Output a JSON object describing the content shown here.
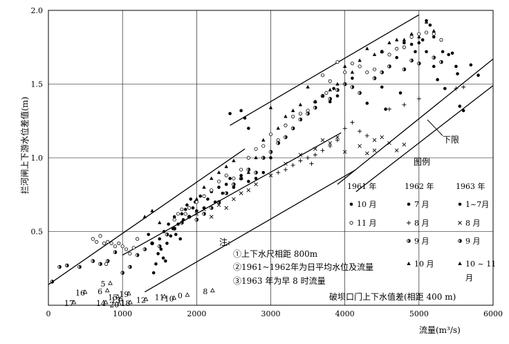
{
  "chart_data": {
    "type": "scatter",
    "title": "",
    "xlabel": "流量(m³/s)",
    "ylabel": "拦河闸上下游水位差值(m)",
    "xlim": [
      0,
      6000
    ],
    "ylim": [
      0,
      2.0
    ],
    "x_ticks": [
      "0",
      "1000",
      "2000",
      "3000",
      "4000",
      "5000",
      "6000"
    ],
    "y_ticks": [
      "0.5",
      "1.0",
      "1.5",
      "2.0"
    ],
    "grid": true,
    "legend": {
      "title": "图例",
      "years": [
        "1961 年",
        "1962 年",
        "1963 年"
      ],
      "rows": [
        {
          "key": "oct",
          "cells": [
            "10 月",
            "7 月",
            "1~7月"
          ],
          "markers": [
            "dot",
            "dot",
            "dot"
          ]
        },
        {
          "key": "nov",
          "cells": [
            "11 月",
            "8 月",
            "8 月"
          ],
          "markers": [
            "circle",
            "plus",
            "cross"
          ]
        },
        {
          "key": "sep",
          "cells": [
            "",
            "9 月",
            "9 月"
          ],
          "markers": [
            "",
            "half",
            "half"
          ]
        },
        {
          "key": "oct2",
          "cells": [
            "",
            "10 月",
            "10 ~ 11 月"
          ],
          "markers": [
            "",
            "triangle",
            "triangle"
          ]
        }
      ]
    },
    "notes": {
      "head": "注:",
      "items": [
        "①上下水尺相距 800m",
        "②1961~1962年为日平均水位及流量",
        "③1963 年为早 8 时流量"
      ]
    },
    "annotations": {
      "lower_limit": "下限",
      "dam_caption": "破坝口门上下水值差(相距 400 m)"
    },
    "lines": [
      {
        "name": "",
        "x": [
          0,
          2650
        ],
        "y": [
          0.14,
          1.06
        ]
      },
      {
        "name": "",
        "x": [
          1000,
          3950
        ],
        "y": [
          0.34,
          1.17
        ]
      },
      {
        "name": "",
        "x": [
          1300,
          4150
        ],
        "y": [
          0.09,
          0.92
        ]
      },
      {
        "name": "",
        "x": [
          2450,
          5000
        ],
        "y": [
          1.22,
          1.97
        ]
      },
      {
        "name": "",
        "x": [
          3900,
          6000
        ],
        "y": [
          0.82,
          1.67
        ]
      },
      {
        "name": "下限",
        "x": [
          4150,
          6000
        ],
        "y": [
          0.77,
          1.49
        ]
      }
    ],
    "series": [
      {
        "name": "dot",
        "points": [
          [
            1350,
            0.48
          ],
          [
            1400,
            0.42
          ],
          [
            1420,
            0.22
          ],
          [
            1450,
            0.28
          ],
          [
            1480,
            0.35
          ],
          [
            1500,
            0.45
          ],
          [
            1520,
            0.38
          ],
          [
            1550,
            0.32
          ],
          [
            1560,
            0.5
          ],
          [
            1580,
            0.3
          ],
          [
            1600,
            0.42
          ],
          [
            1620,
            0.55
          ],
          [
            1650,
            0.47
          ],
          [
            1680,
            0.52
          ],
          [
            1700,
            0.6
          ],
          [
            1720,
            0.48
          ],
          [
            1750,
            0.55
          ],
          [
            1780,
            0.45
          ],
          [
            1800,
            0.62
          ],
          [
            1820,
            0.58
          ],
          [
            1850,
            0.65
          ],
          [
            1870,
            0.68
          ],
          [
            1900,
            0.6
          ],
          [
            1920,
            0.72
          ],
          [
            1950,
            0.66
          ],
          [
            1980,
            0.7
          ],
          [
            2000,
            0.64
          ],
          [
            2050,
            0.74
          ],
          [
            2100,
            0.66
          ],
          [
            2150,
            0.72
          ],
          [
            2200,
            0.77
          ],
          [
            2250,
            0.7
          ],
          [
            2300,
            0.8
          ],
          [
            2350,
            0.76
          ],
          [
            2400,
            0.82
          ],
          [
            2450,
            0.86
          ],
          [
            2500,
            0.8
          ],
          [
            2600,
            0.88
          ],
          [
            2700,
            0.84
          ],
          [
            2800,
            0.86
          ],
          [
            2900,
            0.9
          ],
          [
            2450,
            1.3
          ],
          [
            2600,
            1.32
          ],
          [
            2650,
            1.27
          ],
          [
            2700,
            1.2
          ],
          [
            3000,
            1.0
          ],
          [
            3800,
            1.38
          ],
          [
            3850,
            1.47
          ],
          [
            3900,
            1.42
          ],
          [
            4100,
            1.54
          ],
          [
            4300,
            1.37
          ],
          [
            4500,
            1.48
          ],
          [
            4550,
            1.33
          ],
          [
            4700,
            1.68
          ],
          [
            4750,
            1.44
          ],
          [
            4800,
            1.78
          ],
          [
            4900,
            1.77
          ],
          [
            4950,
            1.72
          ],
          [
            5000,
            1.78
          ],
          [
            5050,
            1.8
          ],
          [
            5100,
            1.93
          ],
          [
            5150,
            1.9
          ],
          [
            5200,
            1.62
          ],
          [
            5250,
            1.53
          ],
          [
            5300,
            1.8
          ],
          [
            5320,
            1.72
          ],
          [
            5350,
            1.47
          ],
          [
            5400,
            1.7
          ],
          [
            5450,
            1.71
          ],
          [
            5500,
            1.62
          ],
          [
            5520,
            1.57
          ],
          [
            5550,
            1.35
          ],
          [
            5600,
            1.32
          ],
          [
            5700,
            1.63
          ],
          [
            5800,
            1.56
          ],
          [
            5200,
            1.82
          ],
          [
            5100,
            1.72
          ]
        ]
      },
      {
        "name": "circle",
        "points": [
          [
            600,
            0.45
          ],
          [
            650,
            0.43
          ],
          [
            700,
            0.47
          ],
          [
            750,
            0.42
          ],
          [
            800,
            0.43
          ],
          [
            850,
            0.42
          ],
          [
            900,
            0.4
          ],
          [
            950,
            0.42
          ],
          [
            1000,
            0.4
          ],
          [
            1050,
            0.38
          ],
          [
            1100,
            0.35
          ],
          [
            1150,
            0.39
          ],
          [
            1200,
            0.45
          ],
          [
            1700,
            0.58
          ],
          [
            1750,
            0.62
          ],
          [
            1800,
            0.65
          ],
          [
            1850,
            0.62
          ],
          [
            1900,
            0.66
          ],
          [
            2000,
            0.7
          ],
          [
            2100,
            0.74
          ],
          [
            2200,
            0.78
          ],
          [
            2300,
            0.84
          ],
          [
            2400,
            0.88
          ],
          [
            2500,
            0.86
          ],
          [
            2600,
            0.92
          ],
          [
            2700,
            1.0
          ],
          [
            2800,
            1.06
          ],
          [
            2900,
            1.08
          ],
          [
            3000,
            1.16
          ],
          [
            3100,
            1.12
          ],
          [
            3200,
            1.22
          ],
          [
            3300,
            1.28
          ],
          [
            3400,
            1.3
          ],
          [
            3500,
            1.32
          ],
          [
            3600,
            1.38
          ],
          [
            3700,
            1.56
          ],
          [
            3750,
            1.44
          ],
          [
            3800,
            1.52
          ],
          [
            3900,
            1.65
          ],
          [
            4000,
            1.58
          ],
          [
            4100,
            1.64
          ],
          [
            4200,
            1.62
          ],
          [
            4300,
            1.58
          ],
          [
            4400,
            1.6
          ],
          [
            4500,
            1.72
          ],
          [
            4600,
            1.7
          ],
          [
            4700,
            1.74
          ],
          [
            4800,
            1.75
          ],
          [
            4900,
            1.82
          ],
          [
            5000,
            1.84
          ],
          [
            5100,
            1.85
          ],
          [
            5200,
            1.84
          ],
          [
            5300,
            1.8
          ],
          [
            780,
            0.28
          ]
        ]
      },
      {
        "name": "plus",
        "points": [
          [
            3100,
            0.9
          ],
          [
            3200,
            0.92
          ],
          [
            3300,
            0.95
          ],
          [
            3400,
            0.98
          ],
          [
            3500,
            1.0
          ],
          [
            3550,
            0.96
          ],
          [
            3600,
            1.02
          ],
          [
            3700,
            1.05
          ],
          [
            3800,
            1.08
          ],
          [
            3900,
            1.12
          ],
          [
            4000,
            1.2
          ],
          [
            4100,
            1.24
          ],
          [
            4200,
            1.18
          ],
          [
            4300,
            1.15
          ],
          [
            4800,
            1.36
          ],
          [
            5000,
            1.4
          ],
          [
            5500,
            1.47
          ],
          [
            5600,
            1.48
          ],
          [
            4600,
            1.33
          ]
        ]
      },
      {
        "name": "cross",
        "points": [
          [
            2000,
            0.62
          ],
          [
            2100,
            0.65
          ],
          [
            2200,
            0.6
          ],
          [
            2300,
            0.68
          ],
          [
            2400,
            0.66
          ],
          [
            2500,
            0.72
          ],
          [
            2600,
            0.76
          ],
          [
            2700,
            0.78
          ],
          [
            2800,
            0.82
          ],
          [
            3000,
            0.88
          ],
          [
            3200,
            0.96
          ],
          [
            3400,
            1.02
          ],
          [
            3600,
            1.06
          ],
          [
            3800,
            1.1
          ],
          [
            3900,
            1.14
          ],
          [
            4000,
            1.04
          ],
          [
            4200,
            1.08
          ],
          [
            4400,
            1.12
          ],
          [
            4500,
            1.14
          ],
          [
            4600,
            1.1
          ],
          [
            4700,
            1.05
          ],
          [
            4800,
            1.09
          ],
          [
            4400,
            1.05
          ],
          [
            4300,
            1.03
          ],
          [
            3700,
            1.12
          ]
        ]
      },
      {
        "name": "half",
        "points": [
          [
            50,
            0.16
          ],
          [
            150,
            0.26
          ],
          [
            250,
            0.27
          ],
          [
            420,
            0.26
          ],
          [
            600,
            0.3
          ],
          [
            700,
            0.28
          ],
          [
            800,
            0.3
          ],
          [
            900,
            0.36
          ],
          [
            1000,
            0.22
          ],
          [
            1100,
            0.26
          ],
          [
            1200,
            0.34
          ],
          [
            1300,
            0.38
          ],
          [
            1400,
            0.42
          ],
          [
            1500,
            0.4
          ],
          [
            1600,
            0.48
          ],
          [
            1700,
            0.52
          ],
          [
            1800,
            0.56
          ],
          [
            1900,
            0.6
          ],
          [
            2000,
            0.58
          ],
          [
            2100,
            0.62
          ],
          [
            2200,
            0.66
          ],
          [
            2300,
            0.7
          ],
          [
            2400,
            0.76
          ],
          [
            2500,
            0.82
          ],
          [
            2600,
            0.86
          ],
          [
            2700,
            0.92
          ],
          [
            2800,
            0.9
          ],
          [
            2900,
            1.0
          ],
          [
            3000,
            1.04
          ],
          [
            3100,
            1.1
          ],
          [
            3200,
            1.14
          ],
          [
            3300,
            1.2
          ],
          [
            3400,
            1.26
          ],
          [
            3500,
            1.3
          ],
          [
            3600,
            1.34
          ],
          [
            3700,
            1.42
          ],
          [
            3800,
            1.4
          ],
          [
            3900,
            1.46
          ],
          [
            4000,
            1.5
          ],
          [
            4100,
            1.48
          ],
          [
            4200,
            1.44
          ],
          [
            4400,
            1.54
          ],
          [
            4500,
            1.58
          ],
          [
            4600,
            1.62
          ],
          [
            4800,
            1.6
          ],
          [
            4900,
            1.66
          ],
          [
            5000,
            1.64
          ],
          [
            5200,
            1.68
          ],
          [
            5300,
            1.65
          ]
        ]
      },
      {
        "name": "triangle",
        "points": [
          [
            1300,
            0.6
          ],
          [
            1400,
            0.64
          ],
          [
            1500,
            0.56
          ],
          [
            2000,
            0.72
          ],
          [
            2100,
            0.8
          ],
          [
            2200,
            0.86
          ],
          [
            2300,
            0.9
          ],
          [
            2400,
            0.94
          ],
          [
            2500,
            0.98
          ],
          [
            2600,
            0.86
          ],
          [
            2700,
            0.9
          ],
          [
            2800,
            1.0
          ],
          [
            2900,
            1.12
          ],
          [
            3000,
            1.34
          ],
          [
            3100,
            1.2
          ],
          [
            3200,
            1.28
          ],
          [
            3300,
            1.32
          ],
          [
            3400,
            1.36
          ],
          [
            3500,
            1.48
          ],
          [
            3600,
            1.38
          ],
          [
            3700,
            1.42
          ],
          [
            3800,
            1.46
          ],
          [
            3900,
            1.5
          ],
          [
            4000,
            1.62
          ],
          [
            4100,
            1.58
          ],
          [
            4200,
            1.66
          ],
          [
            4300,
            1.74
          ],
          [
            4400,
            1.7
          ],
          [
            4500,
            1.72
          ],
          [
            4600,
            1.78
          ],
          [
            4700,
            1.8
          ],
          [
            4800,
            1.8
          ],
          [
            4900,
            1.84
          ],
          [
            5000,
            1.82
          ],
          [
            5100,
            1.92
          ],
          [
            5200,
            1.86
          ]
        ]
      }
    ],
    "points_labels": {
      "labels": [
        "16",
        "17",
        "6",
        "15",
        "14",
        "13",
        "19",
        "20",
        "18",
        "12",
        "11",
        "10",
        "0",
        "8",
        "5"
      ],
      "x": [
        420,
        270,
        720,
        860,
        700,
        900,
        1010,
        880,
        1030,
        1240,
        1490,
        1620,
        1800,
        2140,
        760
      ],
      "y": [
        0.08,
        0.01,
        0.09,
        0.05,
        0.01,
        0.03,
        0.07,
        0.0,
        0.01,
        0.03,
        0.05,
        0.04,
        0.06,
        0.09,
        0.14
      ]
    }
  }
}
